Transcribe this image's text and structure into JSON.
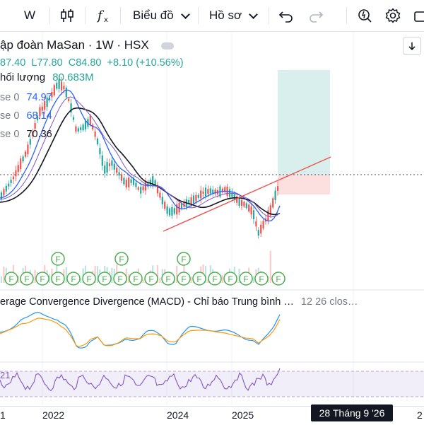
{
  "toolbar": {
    "interval": "W",
    "indicators_icon": "fx-icon",
    "chart_type_label": "Biểu đồ",
    "profile_label": "Hồ sơ"
  },
  "legend": {
    "symbol_title": "ập đoàn MaSan · 1W · HSX",
    "ohlc": {
      "open": "87.40",
      "low": "L77.80",
      "close": "C84.80",
      "change": "+8.10 (+10.56%)"
    },
    "volume_label": "hối lượng",
    "volume_value": "80.683M",
    "ma_rows": [
      {
        "label": "se 0",
        "value": "74.97"
      },
      {
        "label": "se 0",
        "value": "68.14"
      },
      {
        "label": "se 0",
        "value": "70.36"
      }
    ]
  },
  "macd": {
    "title": "erage Convergence Divergence (MACD) - Chỉ báo Trung bình …",
    "params": "12 26 clos…"
  },
  "rsi": {
    "label": "21"
  },
  "dividend_marker": "F",
  "xaxis": {
    "labels": [
      "1",
      "2022",
      "2024",
      "2025",
      "2"
    ],
    "crosshair_date": "28 Tháng 9 '26"
  },
  "colors": {
    "up": "#26a69a",
    "down": "#ef5350",
    "ma1": "#2962ff",
    "ma2": "#131722",
    "macd": "#2196f3",
    "signal": "#ff9800",
    "rsi": "#7e57c2"
  }
}
